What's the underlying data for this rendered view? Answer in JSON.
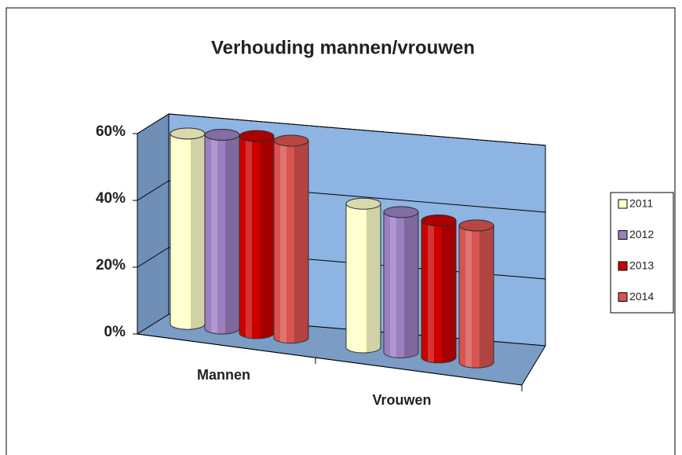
{
  "chart_data": {
    "type": "bar3d",
    "title": "Verhouding mannen/vrouwen",
    "categories": [
      "Mannen",
      "Vrouwen"
    ],
    "series": [
      {
        "name": "2011",
        "color": "#ffffcc",
        "values": [
          57,
          43
        ]
      },
      {
        "name": "2012",
        "color": "#9b7fc1",
        "values": [
          58,
          42
        ]
      },
      {
        "name": "2013",
        "color": "#cc0000",
        "values": [
          59,
          41
        ]
      },
      {
        "name": "2014",
        "color": "#d85450",
        "values": [
          59,
          41
        ]
      }
    ],
    "ylim": [
      0,
      60
    ],
    "yticks": [
      {
        "value": 0,
        "label": "0%"
      },
      {
        "value": 20,
        "label": "20%"
      },
      {
        "value": 40,
        "label": "40%"
      },
      {
        "value": 60,
        "label": "60%"
      }
    ],
    "grid": true,
    "legend": "right"
  }
}
